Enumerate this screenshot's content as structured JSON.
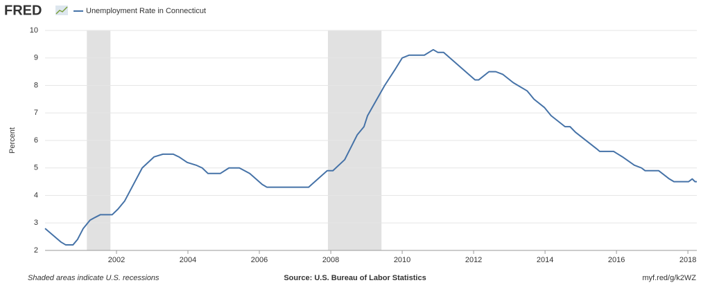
{
  "logo": "FRED",
  "footer": {
    "note": "Shaded areas indicate U.S. recessions",
    "source": "Source: U.S. Bureau of Labor Statistics",
    "link": "myf.red/g/k2WZ"
  },
  "chart_data": {
    "type": "line",
    "ylabel": "Percent",
    "x": [
      2000.0,
      2000.45,
      2000.58,
      2000.78,
      2000.91,
      2001.07,
      2001.26,
      2001.4,
      2001.55,
      2001.88,
      2002.04,
      2002.23,
      2002.72,
      2003.05,
      2003.3,
      2003.59,
      2003.75,
      2003.98,
      2004.23,
      2004.4,
      2004.56,
      2004.91,
      2005.15,
      2005.44,
      2005.73,
      2006.08,
      2006.21,
      2007.38,
      2007.9,
      2008.06,
      2008.39,
      2008.74,
      2008.93,
      2009.03,
      2009.51,
      2009.81,
      2010.0,
      2010.19,
      2010.62,
      2010.87,
      2011.0,
      2011.16,
      2012.04,
      2012.14,
      2012.43,
      2012.62,
      2012.82,
      2013.11,
      2013.5,
      2013.69,
      2013.98,
      2014.17,
      2014.56,
      2014.7,
      2014.85,
      2015.44,
      2015.53,
      2015.92,
      2016.17,
      2016.5,
      2016.7,
      2016.8,
      2017.18,
      2017.48,
      2017.61,
      2018.02,
      2018.12,
      2018.2,
      2018.25
    ],
    "series": [
      {
        "name": "Unemployment Rate in Connecticut",
        "color": "#4572a7",
        "values": [
          2.8,
          2.3,
          2.2,
          2.2,
          2.4,
          2.8,
          3.1,
          3.2,
          3.3,
          3.3,
          3.5,
          3.8,
          5.0,
          5.4,
          5.5,
          5.5,
          5.4,
          5.2,
          5.1,
          5.0,
          4.8,
          4.8,
          5.0,
          5.0,
          4.8,
          4.4,
          4.3,
          4.3,
          4.9,
          4.9,
          5.3,
          6.2,
          6.5,
          6.9,
          8.0,
          8.6,
          9.0,
          9.1,
          9.1,
          9.3,
          9.2,
          9.2,
          8.2,
          8.2,
          8.5,
          8.5,
          8.4,
          8.1,
          7.8,
          7.5,
          7.2,
          6.9,
          6.5,
          6.5,
          6.3,
          5.7,
          5.6,
          5.6,
          5.4,
          5.1,
          5.0,
          4.9,
          4.9,
          4.6,
          4.5,
          4.5,
          4.6,
          4.5,
          4.5
        ]
      }
    ],
    "recessions": [
      [
        2001.17,
        2001.83
      ],
      [
        2007.92,
        2009.42
      ]
    ],
    "recession_color": "#e1e1e1",
    "xlim": [
      2000.0,
      2018.25
    ],
    "xticks": [
      2002,
      2004,
      2006,
      2008,
      2010,
      2012,
      2014,
      2016,
      2018
    ],
    "ylim": [
      2,
      10
    ],
    "yticks": [
      2,
      3,
      4,
      5,
      6,
      7,
      8,
      9,
      10
    ],
    "grid": true
  }
}
